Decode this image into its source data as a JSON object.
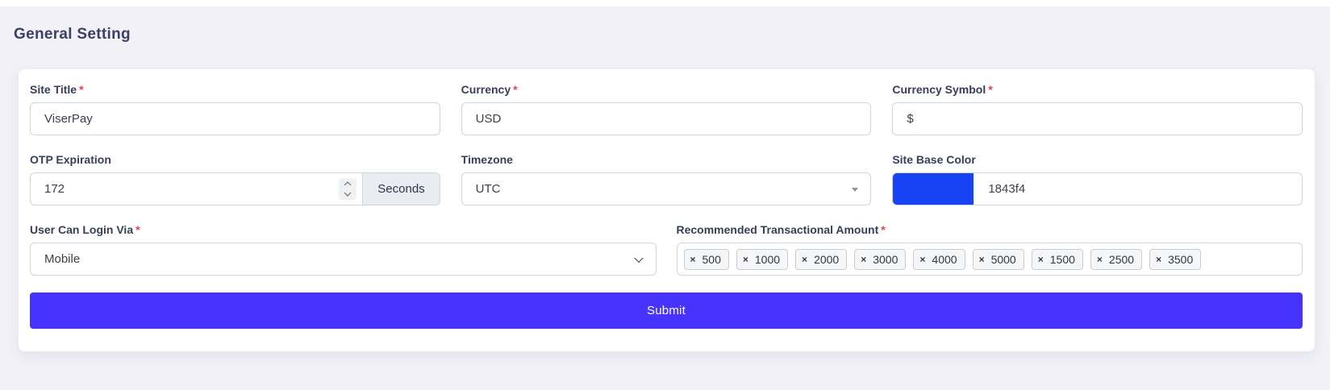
{
  "page": {
    "title": "General Setting"
  },
  "colors": {
    "accent": "#4634fe",
    "page_background": "#f1f1f7",
    "required_marker": "#e8404f",
    "site_base_color": "#1843f4"
  },
  "icons": {
    "tag_remove": "×",
    "select_chevron": "chevron-down",
    "select2_caret": "caret-down",
    "number_stepper": "up-down-chevrons"
  },
  "form": {
    "required_marker": "*",
    "site_title": {
      "label": "Site Title",
      "value": "ViserPay"
    },
    "currency": {
      "label": "Currency",
      "value": "USD"
    },
    "currency_symbol": {
      "label": "Currency Symbol",
      "value": "$"
    },
    "otp_expiration": {
      "label": "OTP Expiration",
      "value": "172",
      "addon": "Seconds"
    },
    "timezone": {
      "label": "Timezone",
      "value": "UTC"
    },
    "site_base_color": {
      "label": "Site Base Color",
      "value": "1843f4",
      "swatch": "#1843f4"
    },
    "login_via": {
      "label": "User Can Login Via",
      "value": "Mobile"
    },
    "recommended_amounts": {
      "label": "Recommended Transactional Amount",
      "tags": [
        "500",
        "1000",
        "2000",
        "3000",
        "4000",
        "5000",
        "1500",
        "2500",
        "3500"
      ]
    },
    "submit_label": "Submit"
  }
}
